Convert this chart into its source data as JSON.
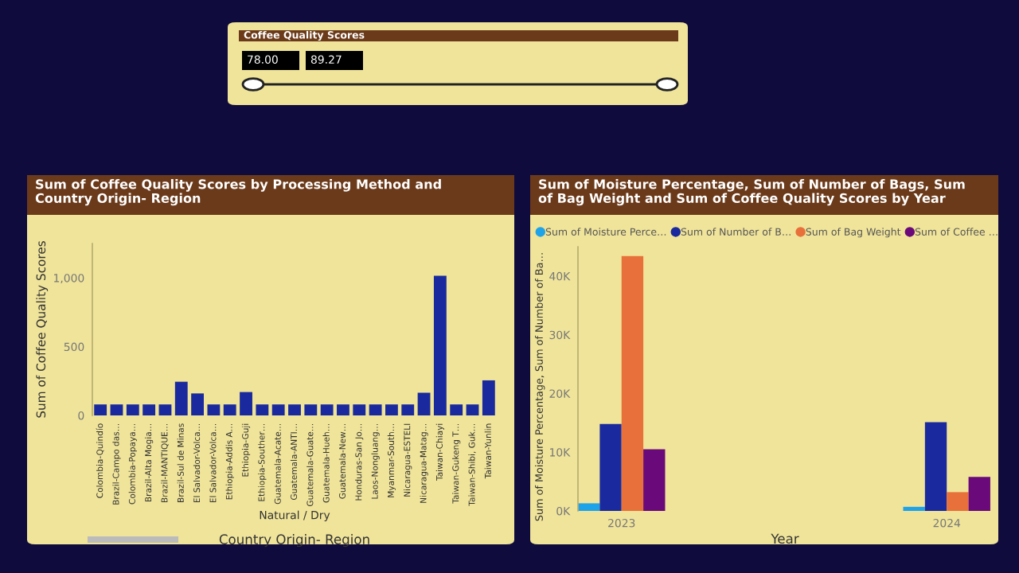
{
  "chart_data": [
    {
      "type": "other",
      "title": "Coffee Quality Scores",
      "annotations": [
        "78.00",
        "89.27"
      ]
    },
    {
      "type": "bar",
      "title": "Sum of Coffee Quality Scores by Processing Method and Country Origin- Region",
      "xlabel": "Country Origin- Region",
      "ylabel": "Sum of Coffee Quality Scores",
      "categories": [
        "Colombia-Quindío",
        "Brazil-Campo das…",
        "Colombia-Popaya…",
        "Brazil-Alta Mogia…",
        "Brazil-MANTIQUE…",
        "Brazil-Sul de Minas",
        "El Salvador-Volca…",
        "El Salvador-Volca…",
        "Ethiopia-Addis A…",
        "Ethiopia-Guji",
        "Ethiopia-Souther…",
        "Guatemala-Acate…",
        "Guatemala-ANTI…",
        "Guatemala-Guate…",
        "Guatemala-Hueh…",
        "Guatemala-New…",
        "Honduras-San Jo…",
        "Laos-Nongluang…",
        "Myanmar-South…",
        "Nicaragua-ESTELI",
        "Nicaragua-Matag…",
        "Taiwan-Chiayi",
        "Taiwan-Gukeng T…",
        "Taiwan-Shibi, Guk…",
        "Taiwan-Yunlin"
      ],
      "values": [
        80,
        80,
        80,
        80,
        80,
        245,
        160,
        80,
        80,
        170,
        80,
        80,
        80,
        80,
        80,
        80,
        80,
        80,
        80,
        80,
        165,
        1015,
        80,
        80,
        255
      ],
      "color": "#1a2a9e",
      "annotations": [
        "Natural / Dry"
      ],
      "ylim": [
        0,
        1250
      ],
      "yticks": [
        0,
        500,
        {
          "value": 1000,
          "label": "1,000"
        }
      ],
      "grid": false,
      "legend": false
    },
    {
      "type": "bar",
      "title": "Sum of Moisture Percentage, Sum of Number of Bags, Sum of Bag Weight and Sum of Coffee Quality Scores by Year",
      "xlabel": "Year",
      "ylabel": "Sum of Moisture Percentage, Sum of Number of Ba…",
      "categories": [
        "2023",
        "2024"
      ],
      "series": [
        {
          "name": "Sum of Moisture Perce…",
          "color": "#1fa3e8",
          "values": [
            1300,
            700
          ]
        },
        {
          "name": "Sum of Number of B…",
          "color": "#1a2a9e",
          "values": [
            14800,
            15100
          ]
        },
        {
          "name": "Sum of Bag Weight",
          "color": "#e8703a",
          "values": [
            43400,
            3200
          ]
        },
        {
          "name": "Sum of Coffee …",
          "color": "#6a0a7a",
          "values": [
            10500,
            5800
          ]
        }
      ],
      "ylim": [
        0,
        45000
      ],
      "yticks": [
        {
          "value": 0,
          "label": "0K"
        },
        {
          "value": 10000,
          "label": "10K"
        },
        {
          "value": 20000,
          "label": "20K"
        },
        {
          "value": 30000,
          "label": "30K"
        },
        {
          "value": 40000,
          "label": "40K"
        }
      ],
      "grid": false,
      "legend": "top"
    }
  ]
}
